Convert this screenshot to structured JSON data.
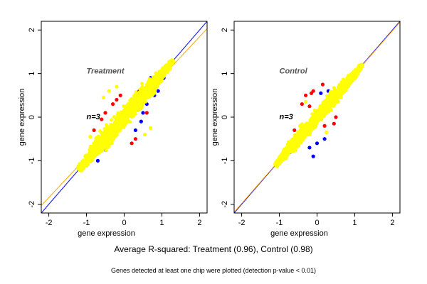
{
  "chart_data": [
    {
      "type": "scatter",
      "panel_label": "Treatment",
      "n_label": "n=3",
      "xlabel": "gene expression",
      "ylabel": "gene expression",
      "xlim": [
        -2.2,
        2.2
      ],
      "ylim": [
        -2.2,
        2.2
      ],
      "xticks": [
        "-2",
        "-1",
        "0",
        "1",
        "2"
      ],
      "yticks": [
        "-2",
        "-1",
        "0",
        "1",
        "2"
      ],
      "tick_values": [
        -2,
        -1,
        0,
        1,
        2
      ],
      "grid": false,
      "lines": [
        {
          "color": "#0000ff",
          "points": [
            [
              -2.2,
              -2.2
            ],
            [
              2.2,
              2.2
            ]
          ]
        },
        {
          "color": "#ffa500",
          "points": [
            [
              -2.2,
              -2.03
            ],
            [
              2.2,
              2.03
            ]
          ]
        }
      ],
      "cloud": {
        "x_range": [
          -1.2,
          1.3
        ],
        "spread": 0.22
      },
      "series": [
        {
          "color": "#0000ff",
          "points": [
            [
              -1.1,
              -1.1
            ],
            [
              -1.0,
              -0.9
            ],
            [
              0.6,
              0.3
            ],
            [
              0.8,
              0.5
            ],
            [
              0.9,
              0.6
            ],
            [
              0.5,
              0.1
            ],
            [
              0.3,
              -0.3
            ],
            [
              -0.5,
              -0.75
            ],
            [
              0.7,
              0.9
            ],
            [
              1.05,
              0.9
            ],
            [
              0.45,
              -0.1
            ],
            [
              -0.7,
              -1.0
            ]
          ]
        },
        {
          "color": "#ff0000",
          "points": [
            [
              -0.8,
              -0.3
            ],
            [
              -0.5,
              0.1
            ],
            [
              -0.3,
              0.3
            ],
            [
              -0.6,
              -0.05
            ],
            [
              0.2,
              -0.6
            ],
            [
              0.4,
              0.6
            ],
            [
              -0.2,
              0.4
            ],
            [
              0.6,
              0.1
            ],
            [
              -0.1,
              0.5
            ],
            [
              0.3,
              -0.5
            ]
          ]
        },
        {
          "color": "#ffff00",
          "points": [
            [
              -0.4,
              0.6
            ],
            [
              -0.55,
              0.45
            ],
            [
              -0.2,
              0.7
            ],
            [
              0.55,
              -0.4
            ],
            [
              0.7,
              -0.25
            ],
            [
              -0.9,
              -0.45
            ]
          ]
        }
      ]
    },
    {
      "type": "scatter",
      "panel_label": "Control",
      "n_label": "n=3",
      "xlabel": "gene expression",
      "ylabel": "gene expression",
      "xlim": [
        -2.2,
        2.2
      ],
      "ylim": [
        -2.2,
        2.2
      ],
      "xticks": [
        "-2",
        "-1",
        "0",
        "1",
        "2"
      ],
      "yticks": [
        "-2",
        "-1",
        "0",
        "1",
        "2"
      ],
      "tick_values": [
        -2,
        -1,
        0,
        1,
        2
      ],
      "grid": false,
      "lines": [
        {
          "color": "#0000ff",
          "points": [
            [
              -2.2,
              -2.2
            ],
            [
              2.2,
              2.2
            ]
          ]
        },
        {
          "color": "#ffa500",
          "points": [
            [
              -2.2,
              -2.18
            ],
            [
              2.2,
              2.18
            ]
          ]
        }
      ],
      "cloud": {
        "x_range": [
          -1.1,
          1.2
        ],
        "spread": 0.16
      },
      "series": [
        {
          "color": "#0000ff",
          "points": [
            [
              -0.7,
              -0.8
            ],
            [
              -0.1,
              -0.9
            ],
            [
              0.0,
              -0.6
            ],
            [
              0.2,
              -0.5
            ],
            [
              -0.2,
              -0.7
            ],
            [
              0.3,
              0.6
            ],
            [
              0.6,
              0.6
            ],
            [
              0.5,
              0.45
            ],
            [
              -0.5,
              -0.4
            ],
            [
              0.1,
              0.55
            ],
            [
              1.0,
              0.9
            ],
            [
              -1.0,
              -1.05
            ]
          ]
        },
        {
          "color": "#ff0000",
          "points": [
            [
              -0.3,
              0.5
            ],
            [
              -0.1,
              0.6
            ],
            [
              -0.2,
              0.25
            ],
            [
              0.2,
              -0.2
            ],
            [
              0.35,
              0.4
            ],
            [
              -0.4,
              0.3
            ],
            [
              0.5,
              0.0
            ],
            [
              -0.6,
              -0.3
            ],
            [
              0.15,
              0.75
            ],
            [
              0.45,
              -0.15
            ],
            [
              -0.15,
              0.55
            ]
          ]
        },
        {
          "color": "#ffff00",
          "points": [
            [
              -0.3,
              0.35
            ],
            [
              0.35,
              0.55
            ],
            [
              -0.45,
              -0.2
            ],
            [
              0.25,
              -0.35
            ]
          ]
        }
      ]
    }
  ],
  "caption_main": "Average R-squared: Treatment (0.96), Control (0.98)",
  "caption_note": "Genes detected at least one chip were plotted (detection p-value < 0.01)"
}
